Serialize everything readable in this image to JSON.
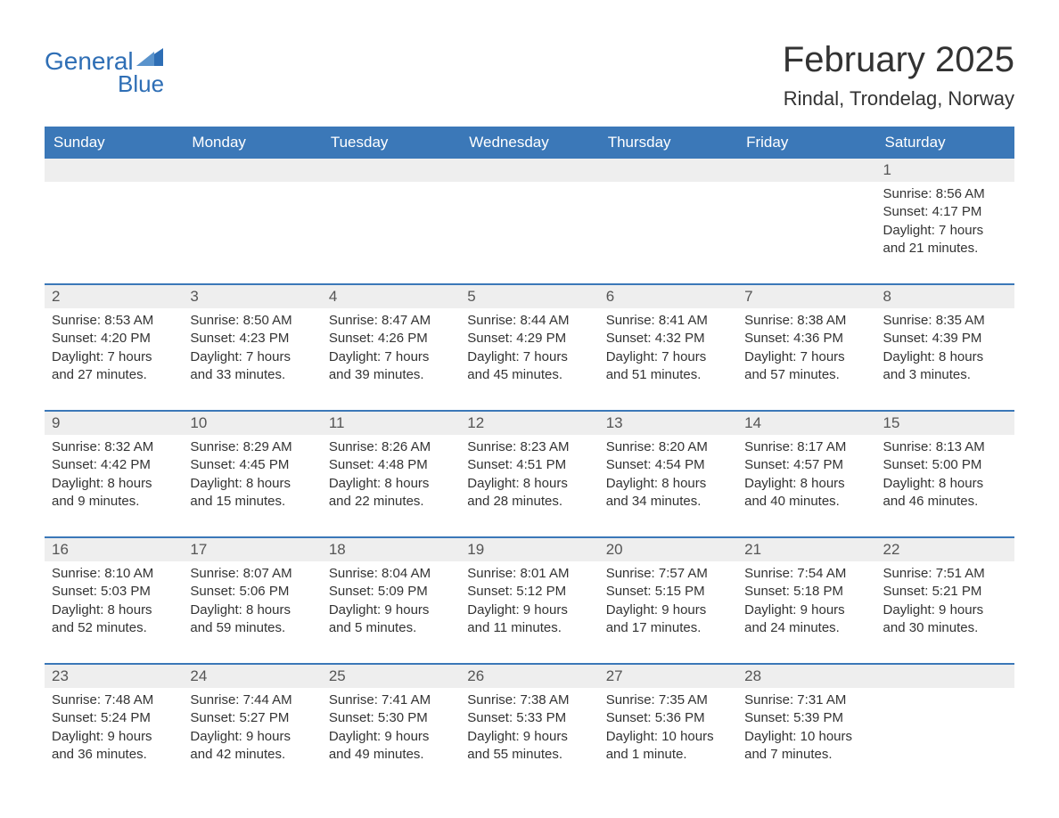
{
  "logo": {
    "text_main": "General",
    "text_sub": "Blue",
    "color": "#2e6eb5"
  },
  "title": "February 2025",
  "location": "Rindal, Trondelag, Norway",
  "header_bg": "#3b78b8",
  "header_fg": "#ffffff",
  "daynum_bg": "#eeeeee",
  "week_border_color": "#3b78b8",
  "text_color": "#333333",
  "background_color": "#ffffff",
  "font_family": "Arial, Helvetica, sans-serif",
  "title_fontsize": 40,
  "location_fontsize": 22,
  "header_fontsize": 17,
  "daynum_fontsize": 17,
  "content_fontsize": 15,
  "days_of_week": [
    "Sunday",
    "Monday",
    "Tuesday",
    "Wednesday",
    "Thursday",
    "Friday",
    "Saturday"
  ],
  "weeks": [
    {
      "has_top_border": false,
      "days": [
        {
          "num": "",
          "sunrise": "",
          "sunset": "",
          "daylight": ""
        },
        {
          "num": "",
          "sunrise": "",
          "sunset": "",
          "daylight": ""
        },
        {
          "num": "",
          "sunrise": "",
          "sunset": "",
          "daylight": ""
        },
        {
          "num": "",
          "sunrise": "",
          "sunset": "",
          "daylight": ""
        },
        {
          "num": "",
          "sunrise": "",
          "sunset": "",
          "daylight": ""
        },
        {
          "num": "",
          "sunrise": "",
          "sunset": "",
          "daylight": ""
        },
        {
          "num": "1",
          "sunrise": "Sunrise: 8:56 AM",
          "sunset": "Sunset: 4:17 PM",
          "daylight": "Daylight: 7 hours and 21 minutes."
        }
      ]
    },
    {
      "has_top_border": true,
      "days": [
        {
          "num": "2",
          "sunrise": "Sunrise: 8:53 AM",
          "sunset": "Sunset: 4:20 PM",
          "daylight": "Daylight: 7 hours and 27 minutes."
        },
        {
          "num": "3",
          "sunrise": "Sunrise: 8:50 AM",
          "sunset": "Sunset: 4:23 PM",
          "daylight": "Daylight: 7 hours and 33 minutes."
        },
        {
          "num": "4",
          "sunrise": "Sunrise: 8:47 AM",
          "sunset": "Sunset: 4:26 PM",
          "daylight": "Daylight: 7 hours and 39 minutes."
        },
        {
          "num": "5",
          "sunrise": "Sunrise: 8:44 AM",
          "sunset": "Sunset: 4:29 PM",
          "daylight": "Daylight: 7 hours and 45 minutes."
        },
        {
          "num": "6",
          "sunrise": "Sunrise: 8:41 AM",
          "sunset": "Sunset: 4:32 PM",
          "daylight": "Daylight: 7 hours and 51 minutes."
        },
        {
          "num": "7",
          "sunrise": "Sunrise: 8:38 AM",
          "sunset": "Sunset: 4:36 PM",
          "daylight": "Daylight: 7 hours and 57 minutes."
        },
        {
          "num": "8",
          "sunrise": "Sunrise: 8:35 AM",
          "sunset": "Sunset: 4:39 PM",
          "daylight": "Daylight: 8 hours and 3 minutes."
        }
      ]
    },
    {
      "has_top_border": true,
      "days": [
        {
          "num": "9",
          "sunrise": "Sunrise: 8:32 AM",
          "sunset": "Sunset: 4:42 PM",
          "daylight": "Daylight: 8 hours and 9 minutes."
        },
        {
          "num": "10",
          "sunrise": "Sunrise: 8:29 AM",
          "sunset": "Sunset: 4:45 PM",
          "daylight": "Daylight: 8 hours and 15 minutes."
        },
        {
          "num": "11",
          "sunrise": "Sunrise: 8:26 AM",
          "sunset": "Sunset: 4:48 PM",
          "daylight": "Daylight: 8 hours and 22 minutes."
        },
        {
          "num": "12",
          "sunrise": "Sunrise: 8:23 AM",
          "sunset": "Sunset: 4:51 PM",
          "daylight": "Daylight: 8 hours and 28 minutes."
        },
        {
          "num": "13",
          "sunrise": "Sunrise: 8:20 AM",
          "sunset": "Sunset: 4:54 PM",
          "daylight": "Daylight: 8 hours and 34 minutes."
        },
        {
          "num": "14",
          "sunrise": "Sunrise: 8:17 AM",
          "sunset": "Sunset: 4:57 PM",
          "daylight": "Daylight: 8 hours and 40 minutes."
        },
        {
          "num": "15",
          "sunrise": "Sunrise: 8:13 AM",
          "sunset": "Sunset: 5:00 PM",
          "daylight": "Daylight: 8 hours and 46 minutes."
        }
      ]
    },
    {
      "has_top_border": true,
      "days": [
        {
          "num": "16",
          "sunrise": "Sunrise: 8:10 AM",
          "sunset": "Sunset: 5:03 PM",
          "daylight": "Daylight: 8 hours and 52 minutes."
        },
        {
          "num": "17",
          "sunrise": "Sunrise: 8:07 AM",
          "sunset": "Sunset: 5:06 PM",
          "daylight": "Daylight: 8 hours and 59 minutes."
        },
        {
          "num": "18",
          "sunrise": "Sunrise: 8:04 AM",
          "sunset": "Sunset: 5:09 PM",
          "daylight": "Daylight: 9 hours and 5 minutes."
        },
        {
          "num": "19",
          "sunrise": "Sunrise: 8:01 AM",
          "sunset": "Sunset: 5:12 PM",
          "daylight": "Daylight: 9 hours and 11 minutes."
        },
        {
          "num": "20",
          "sunrise": "Sunrise: 7:57 AM",
          "sunset": "Sunset: 5:15 PM",
          "daylight": "Daylight: 9 hours and 17 minutes."
        },
        {
          "num": "21",
          "sunrise": "Sunrise: 7:54 AM",
          "sunset": "Sunset: 5:18 PM",
          "daylight": "Daylight: 9 hours and 24 minutes."
        },
        {
          "num": "22",
          "sunrise": "Sunrise: 7:51 AM",
          "sunset": "Sunset: 5:21 PM",
          "daylight": "Daylight: 9 hours and 30 minutes."
        }
      ]
    },
    {
      "has_top_border": true,
      "days": [
        {
          "num": "23",
          "sunrise": "Sunrise: 7:48 AM",
          "sunset": "Sunset: 5:24 PM",
          "daylight": "Daylight: 9 hours and 36 minutes."
        },
        {
          "num": "24",
          "sunrise": "Sunrise: 7:44 AM",
          "sunset": "Sunset: 5:27 PM",
          "daylight": "Daylight: 9 hours and 42 minutes."
        },
        {
          "num": "25",
          "sunrise": "Sunrise: 7:41 AM",
          "sunset": "Sunset: 5:30 PM",
          "daylight": "Daylight: 9 hours and 49 minutes."
        },
        {
          "num": "26",
          "sunrise": "Sunrise: 7:38 AM",
          "sunset": "Sunset: 5:33 PM",
          "daylight": "Daylight: 9 hours and 55 minutes."
        },
        {
          "num": "27",
          "sunrise": "Sunrise: 7:35 AM",
          "sunset": "Sunset: 5:36 PM",
          "daylight": "Daylight: 10 hours and 1 minute."
        },
        {
          "num": "28",
          "sunrise": "Sunrise: 7:31 AM",
          "sunset": "Sunset: 5:39 PM",
          "daylight": "Daylight: 10 hours and 7 minutes."
        },
        {
          "num": "",
          "sunrise": "",
          "sunset": "",
          "daylight": ""
        }
      ]
    }
  ]
}
